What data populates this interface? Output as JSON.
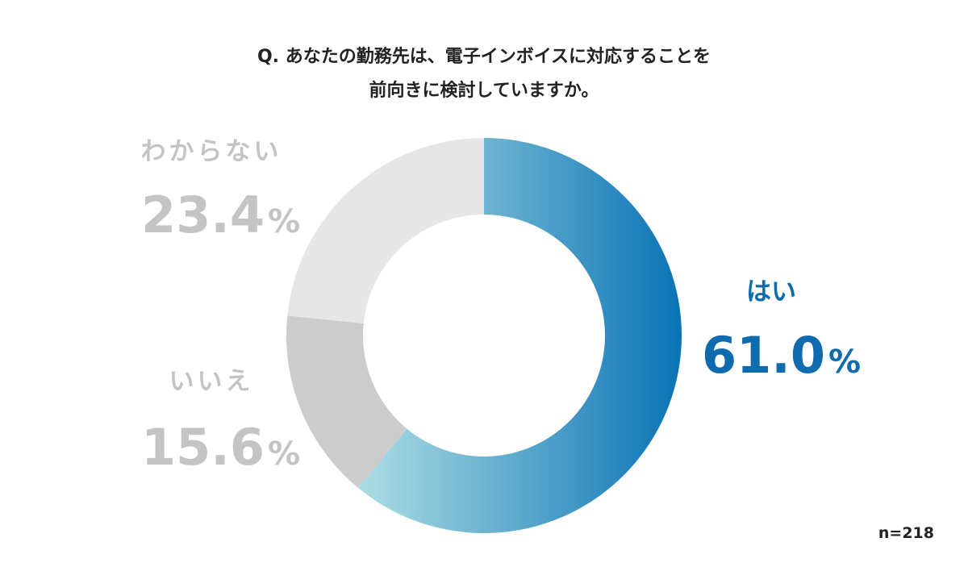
{
  "title_lines": [
    "Q. あなたの勤務先は、電子インボイスに対応することを",
    "前向きに検討していますか。"
  ],
  "sample_size": "n=218",
  "colors": {
    "yes_gradient_start": "#a9dbe3",
    "yes_gradient_end": "#0a73b5",
    "no": "#cccccc",
    "unknown": "#e6e6e6",
    "label_yes": "#0e6cae",
    "label_gray": "#c4c4c4"
  },
  "chart_data": {
    "type": "pie",
    "variant": "donut",
    "start_angle": "12 o'clock",
    "direction": "clockwise",
    "categories": [
      "はい",
      "いいえ",
      "わからない"
    ],
    "values": [
      61.0,
      15.6,
      23.4
    ],
    "value_labels": [
      "61.0",
      "15.6",
      "23.4"
    ],
    "unit": "%"
  }
}
